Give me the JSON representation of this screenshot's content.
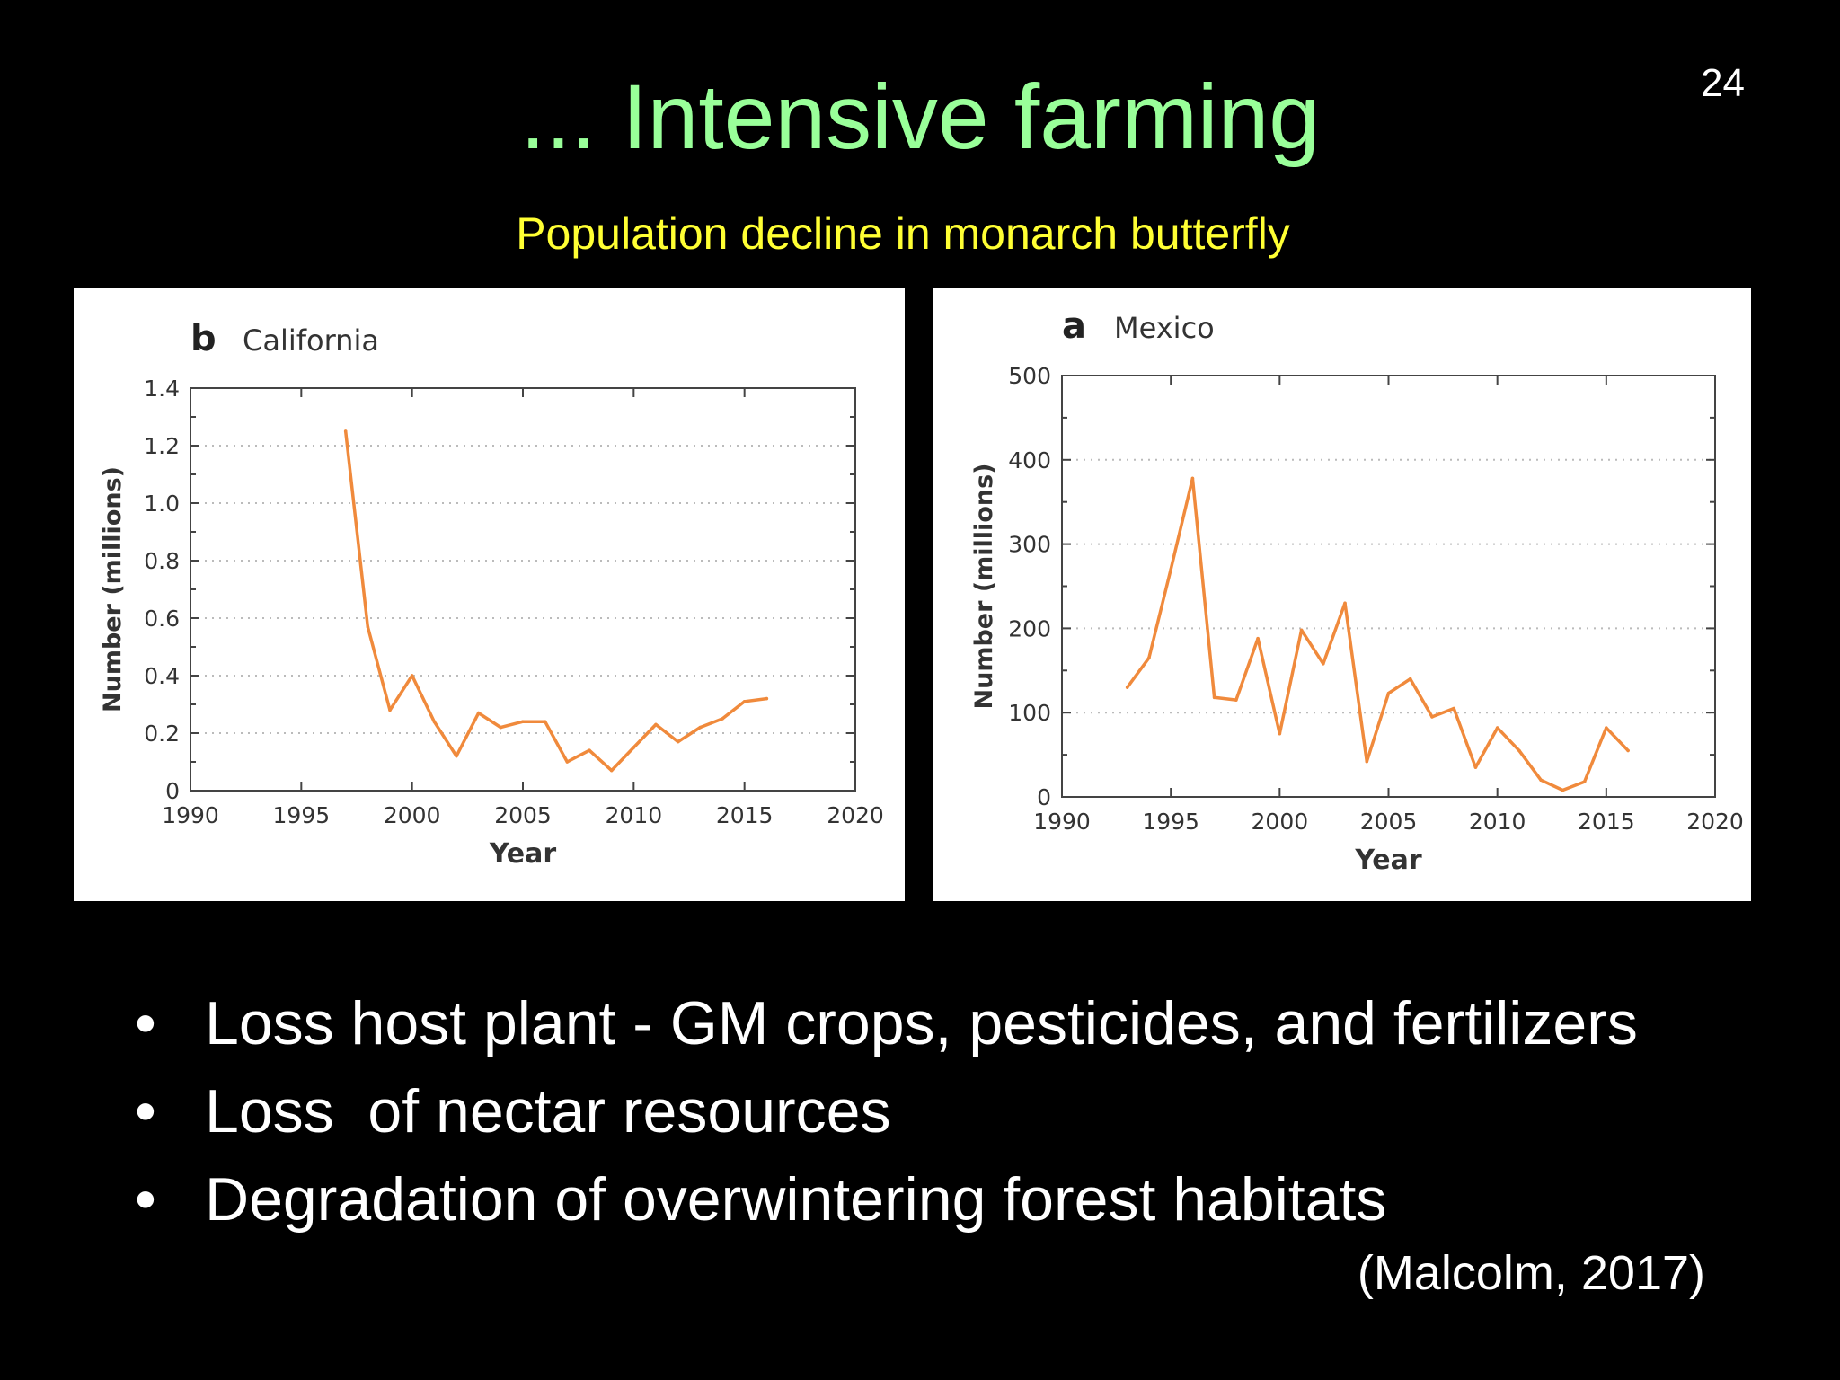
{
  "slide": {
    "number": "24",
    "title": "... Intensive farming",
    "subtitle": "Population decline in monarch butterfly",
    "bullets": [
      "Loss host plant - GM crops, pesticides, and fertilizers",
      "Loss  of nectar resources",
      "Degradation of overwintering forest habitats"
    ],
    "bullet_symbol": "•",
    "citation": "(Malcolm, 2017)"
  },
  "colors": {
    "background": "#000000",
    "title": "#99ff99",
    "subtitle": "#ffff33",
    "text": "#ffffff",
    "series": "#f08a3c"
  },
  "chart_data": [
    {
      "type": "line",
      "panel_letter": "b",
      "title": "California",
      "xlabel": "Year",
      "ylabel": "Number (millions)",
      "xlim": [
        1990,
        2020
      ],
      "ylim": [
        0,
        1.4
      ],
      "x_ticks": [
        1990,
        1995,
        2000,
        2005,
        2010,
        2015,
        2020
      ],
      "y_ticks": [
        0,
        0.2,
        0.4,
        0.6,
        0.8,
        1.0,
        1.2,
        1.4
      ],
      "y_tick_labels": [
        "0",
        "0.2",
        "0.4",
        "0.6",
        "0.8",
        "1.0",
        "1.2",
        "1.4"
      ],
      "grid": "horizontal dotted",
      "series": [
        {
          "x": [
            1997,
            1998,
            1999,
            2000,
            2001,
            2002,
            2003,
            2004,
            2005,
            2006,
            2007,
            2008,
            2009,
            2010,
            2011,
            2012,
            2013,
            2014,
            2015,
            2016
          ],
          "y": [
            1.25,
            0.57,
            0.28,
            0.4,
            0.24,
            0.12,
            0.27,
            0.22,
            0.24,
            0.24,
            0.1,
            0.14,
            0.07,
            0.15,
            0.23,
            0.17,
            0.22,
            0.25,
            0.31,
            0.32
          ]
        }
      ]
    },
    {
      "type": "line",
      "panel_letter": "a",
      "title": "Mexico",
      "xlabel": "Year",
      "ylabel": "Number (millions)",
      "xlim": [
        1990,
        2020
      ],
      "ylim": [
        0,
        500
      ],
      "x_ticks": [
        1990,
        1995,
        2000,
        2005,
        2010,
        2015,
        2020
      ],
      "y_ticks": [
        0,
        100,
        200,
        300,
        400,
        500
      ],
      "y_tick_labels": [
        "0",
        "100",
        "200",
        "300",
        "400",
        "500"
      ],
      "grid": "horizontal dotted",
      "series": [
        {
          "x": [
            1993,
            1994,
            1995,
            1996,
            1997,
            1998,
            1999,
            2000,
            2001,
            2002,
            2003,
            2004,
            2005,
            2006,
            2007,
            2008,
            2009,
            2010,
            2011,
            2012,
            2013,
            2014,
            2015,
            2016
          ],
          "y": [
            130,
            165,
            270,
            378,
            118,
            115,
            188,
            75,
            198,
            158,
            230,
            42,
            123,
            140,
            95,
            105,
            35,
            82,
            55,
            20,
            8,
            18,
            82,
            55
          ]
        }
      ]
    }
  ]
}
